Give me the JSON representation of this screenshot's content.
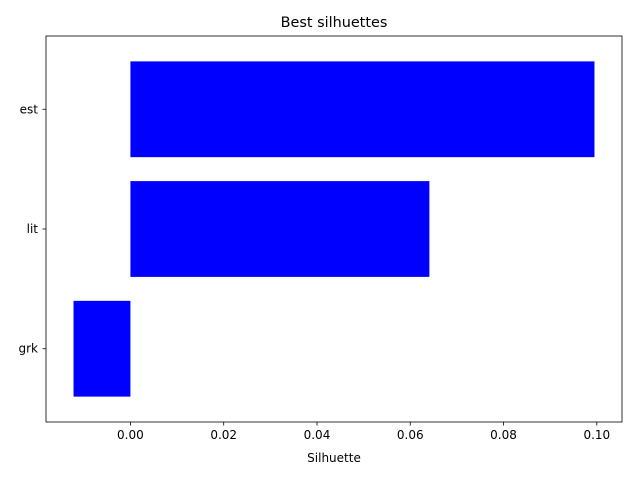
{
  "chart_data": {
    "type": "bar",
    "orientation": "horizontal",
    "title": "Best silhuettes",
    "xlabel": "Silhuette",
    "ylabel": "",
    "categories": [
      "grk",
      "lit",
      "est"
    ],
    "values": [
      -0.0122,
      0.0641,
      0.0995
    ],
    "xlim": [
      -0.0181,
      0.1054
    ],
    "xticks": [
      0.0,
      0.02,
      0.04,
      0.06,
      0.08,
      0.1
    ],
    "xtick_labels": [
      "0.00",
      "0.02",
      "0.04",
      "0.06",
      "0.08",
      "0.10"
    ],
    "bar_color": "#0000ff",
    "grid": false,
    "legend": "none"
  }
}
